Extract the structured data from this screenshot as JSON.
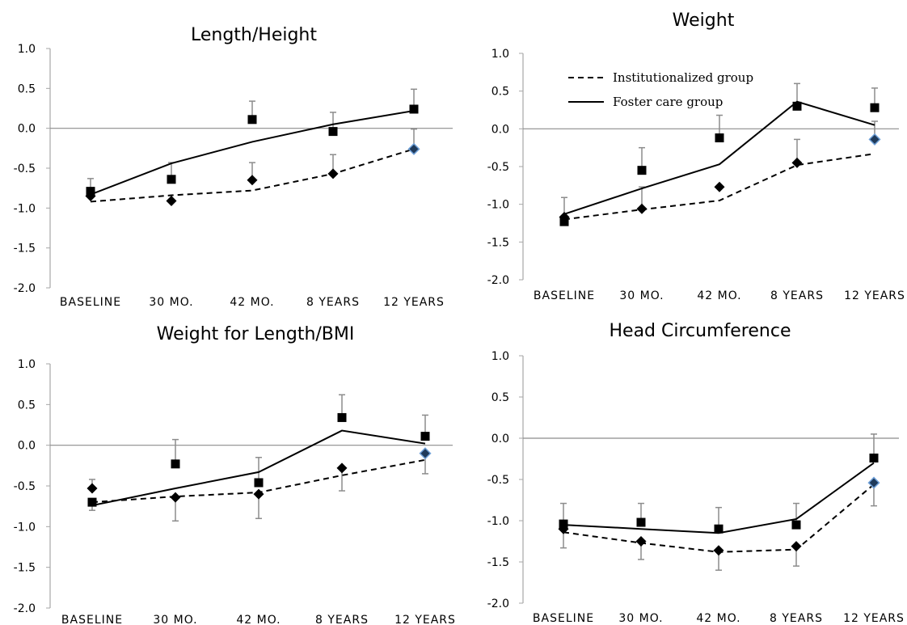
{
  "chart_data": [
    {
      "type": "line",
      "title": "Length/Height",
      "categories": [
        "BASELINE",
        "30 MO.",
        "42 MO.",
        "8 YEARS",
        "12 YEARS"
      ],
      "ylim": [
        -2.0,
        1.0
      ],
      "yticks": [
        "1.0",
        "0.5",
        "0.0",
        "-0.5",
        "-1.0",
        "-1.5",
        "-2.0"
      ],
      "reference_line_y": 0.0,
      "series": [
        {
          "name": "Institutionalized group",
          "style": "dashed",
          "marker": "diamond",
          "points": [
            -0.85,
            -0.91,
            -0.65,
            -0.57,
            -0.26
          ],
          "fit": [
            -0.92,
            -0.84,
            -0.78,
            -0.57,
            -0.26
          ],
          "error_up": [
            0.22,
            null,
            0.22,
            0.24,
            0.25
          ]
        },
        {
          "name": "Foster care group",
          "style": "solid",
          "marker": "square",
          "points": [
            -0.79,
            -0.64,
            0.11,
            -0.04,
            0.24
          ],
          "fit": [
            -0.83,
            -0.44,
            -0.17,
            0.05,
            0.22
          ],
          "error_up": [
            null,
            0.21,
            0.23,
            0.24,
            0.25
          ]
        }
      ]
    },
    {
      "type": "line",
      "title": "Weight",
      "categories": [
        "BASELINE",
        "30 MO.",
        "42 MO.",
        "8 YEARS",
        "12 YEARS"
      ],
      "ylim": [
        -2.0,
        1.0
      ],
      "yticks": [
        "1.0",
        "0.5",
        "0.0",
        "-0.5",
        "-1.0",
        "-1.5",
        "-2.0"
      ],
      "reference_line_y": 0.0,
      "legend": {
        "position": "top-left",
        "entries": [
          "Institutionalized group",
          "Foster care group"
        ]
      },
      "series": [
        {
          "name": "Institutionalized group",
          "style": "dashed",
          "marker": "diamond",
          "points": [
            -1.17,
            -1.06,
            -0.77,
            -0.45,
            -0.14
          ],
          "fit": [
            -1.2,
            -1.07,
            -0.95,
            -0.48,
            -0.33
          ],
          "error_up": [
            0.26,
            0.29,
            null,
            0.31,
            0.24
          ]
        },
        {
          "name": "Foster care group",
          "style": "solid",
          "marker": "square",
          "points": [
            -1.23,
            -0.55,
            -0.12,
            0.3,
            0.28
          ],
          "fit": [
            -1.13,
            -0.79,
            -0.47,
            0.36,
            0.05
          ],
          "error_up": [
            null,
            0.3,
            0.3,
            0.3,
            0.26
          ]
        }
      ]
    },
    {
      "type": "line",
      "title": "Weight for Length/BMI",
      "categories": [
        "BASELINE",
        "30 MO.",
        "42 MO.",
        "8 YEARS",
        "12 YEARS"
      ],
      "ylim": [
        -2.0,
        1.0
      ],
      "yticks": [
        "1.0",
        "0.5",
        "0.0",
        "-0.5",
        "-1.0",
        "-1.5",
        "-2.0"
      ],
      "reference_line_y": 0.0,
      "series": [
        {
          "name": "Institutionalized group",
          "style": "dashed",
          "marker": "diamond",
          "points": [
            -0.53,
            -0.64,
            -0.6,
            -0.28,
            -0.1
          ],
          "fit": [
            -0.7,
            -0.63,
            -0.58,
            -0.37,
            -0.18
          ],
          "error_up": [
            0.11,
            null,
            null,
            null,
            null
          ],
          "error_down": [
            null,
            0.29,
            0.3,
            0.28,
            0.25
          ]
        },
        {
          "name": "Foster care group",
          "style": "solid",
          "marker": "square",
          "points": [
            -0.7,
            -0.23,
            -0.46,
            0.34,
            0.11
          ],
          "fit": [
            -0.74,
            -0.53,
            -0.33,
            0.18,
            0.02
          ],
          "error_up": [
            null,
            0.3,
            0.31,
            0.28,
            0.26
          ],
          "error_down": [
            0.1,
            null,
            null,
            null,
            null
          ]
        }
      ]
    },
    {
      "type": "line",
      "title": "Head Circumference",
      "categories": [
        "BASELINE",
        "30 MO.",
        "42 MO.",
        "8 YEARS",
        "12 YEARS"
      ],
      "ylim": [
        -2.0,
        1.0
      ],
      "yticks": [
        "1.0",
        "0.5",
        "0.0",
        "-0.5",
        "-1.0",
        "-1.5",
        "-2.0"
      ],
      "reference_line_y": 0.0,
      "series": [
        {
          "name": "Institutionalized group",
          "style": "dashed",
          "marker": "diamond",
          "points": [
            -1.1,
            -1.25,
            -1.36,
            -1.31,
            -0.54
          ],
          "fit": [
            -1.14,
            -1.27,
            -1.38,
            -1.35,
            -0.56
          ],
          "error_down": [
            0.23,
            0.22,
            0.24,
            0.24,
            0.28
          ]
        },
        {
          "name": "Foster care group",
          "style": "solid",
          "marker": "square",
          "points": [
            -1.04,
            -1.02,
            -1.1,
            -1.05,
            -0.24
          ],
          "fit": [
            -1.05,
            -1.1,
            -1.15,
            -0.98,
            -0.3
          ],
          "error_up": [
            0.25,
            0.23,
            0.26,
            0.26,
            0.29
          ]
        }
      ]
    }
  ]
}
